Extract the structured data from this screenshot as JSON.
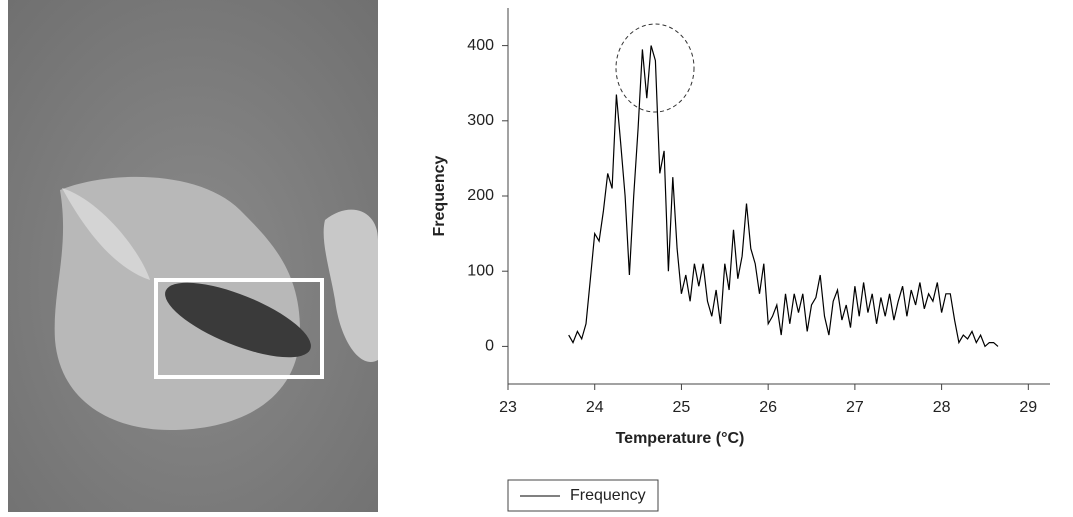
{
  "chart_data": {
    "type": "line",
    "x_label": "Temperature (°C)",
    "y_label": "Frequency",
    "xlim": [
      23,
      29.25
    ],
    "xticks": [
      23,
      24,
      25,
      26,
      27,
      28,
      29
    ],
    "ylim": [
      -50,
      450
    ],
    "yticks": [
      0,
      100,
      200,
      300,
      400
    ],
    "legend": "bottom-left",
    "x": [
      23.7,
      23.75,
      23.8,
      23.85,
      23.9,
      23.95,
      24.0,
      24.05,
      24.1,
      24.15,
      24.2,
      24.25,
      24.3,
      24.35,
      24.4,
      24.45,
      24.5,
      24.55,
      24.6,
      24.65,
      24.7,
      24.75,
      24.8,
      24.85,
      24.9,
      24.95,
      25.0,
      25.05,
      25.1,
      25.15,
      25.2,
      25.25,
      25.3,
      25.35,
      25.4,
      25.45,
      25.5,
      25.55,
      25.6,
      25.65,
      25.7,
      25.75,
      25.8,
      25.85,
      25.9,
      25.95,
      26.0,
      26.05,
      26.1,
      26.15,
      26.2,
      26.25,
      26.3,
      26.35,
      26.4,
      26.45,
      26.5,
      26.55,
      26.6,
      26.65,
      26.7,
      26.75,
      26.8,
      26.85,
      26.9,
      26.95,
      27.0,
      27.05,
      27.1,
      27.15,
      27.2,
      27.25,
      27.3,
      27.35,
      27.4,
      27.45,
      27.5,
      27.55,
      27.6,
      27.65,
      27.7,
      27.75,
      27.8,
      27.85,
      27.9,
      27.95,
      28.0,
      28.05,
      28.1,
      28.15,
      28.2,
      28.25,
      28.3,
      28.35,
      28.4,
      28.45,
      28.5,
      28.55,
      28.6,
      28.65
    ],
    "series": [
      {
        "name": "Frequency",
        "color": "#000000",
        "values": [
          15,
          5,
          20,
          10,
          30,
          90,
          150,
          140,
          180,
          230,
          210,
          335,
          270,
          200,
          95,
          200,
          290,
          395,
          330,
          400,
          380,
          230,
          260,
          100,
          225,
          130,
          70,
          95,
          60,
          110,
          80,
          110,
          60,
          40,
          75,
          30,
          110,
          75,
          155,
          90,
          120,
          190,
          130,
          110,
          70,
          110,
          30,
          40,
          55,
          15,
          70,
          30,
          70,
          45,
          70,
          20,
          55,
          65,
          95,
          40,
          15,
          60,
          75,
          35,
          55,
          25,
          80,
          40,
          85,
          45,
          70,
          30,
          65,
          40,
          70,
          35,
          60,
          80,
          40,
          75,
          55,
          85,
          50,
          70,
          60,
          85,
          45,
          70,
          70,
          35,
          5,
          15,
          10,
          20,
          5,
          15,
          0,
          5,
          5,
          0
        ]
      }
    ]
  }
}
